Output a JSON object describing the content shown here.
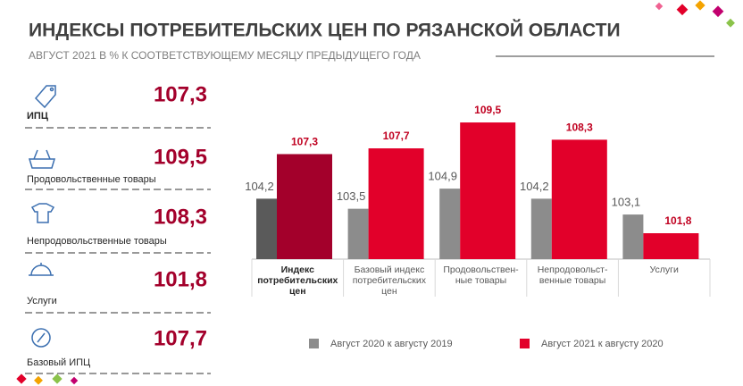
{
  "header": {
    "title": "ИНДЕКСЫ ПОТРЕБИТЕЛЬСКИХ  ЦЕН ПО РЯЗАНСКОЙ ОБЛАСТИ",
    "subtitle": "АВГУСТ  2021  В % К СООТВЕТСТВУЮЩЕМУ  МЕСЯЦУ ПРЕДЫДУЩЕГО ГОДА"
  },
  "panel": [
    {
      "label": "ИПЦ",
      "value": "107,3"
    },
    {
      "label": "Продовольственные товары",
      "value": "109,5"
    },
    {
      "label": "Непродовольственные товары",
      "value": "108,3"
    },
    {
      "label": "Услуги",
      "value": "101,8"
    },
    {
      "label": "Базовый ИПЦ",
      "value": "107,7"
    }
  ],
  "chart_data": {
    "type": "bar",
    "categories": [
      "Индекс\nпотребительских\nцен",
      "Базовый индекс\nпотребительских\nцен",
      "Продовольствен-\nные товары",
      "Непродовольст-\nвенные товары",
      "Услуги"
    ],
    "series": [
      {
        "name": "Август 2020 к августу 2019",
        "color": "#8c8c8c",
        "point_colors": [
          "#5a5a5a",
          "#8c8c8c",
          "#8c8c8c",
          "#8c8c8c",
          "#8c8c8c"
        ],
        "values": [
          104.2,
          103.5,
          104.9,
          104.2,
          103.1
        ],
        "value_labels": [
          "104,2",
          "103,5",
          "104,9",
          "104,2",
          "103,1"
        ]
      },
      {
        "name": "Август 2021 к августу 2020",
        "color": "#e2002a",
        "point_colors": [
          "#a3002b",
          "#e2002a",
          "#e2002a",
          "#e2002a",
          "#e2002a"
        ],
        "values": [
          107.3,
          107.7,
          109.5,
          108.3,
          101.8
        ],
        "value_labels": [
          "107,3",
          "107,7",
          "109,5",
          "108,3",
          "101,8"
        ]
      }
    ],
    "ylim": [
      100,
      110
    ]
  }
}
